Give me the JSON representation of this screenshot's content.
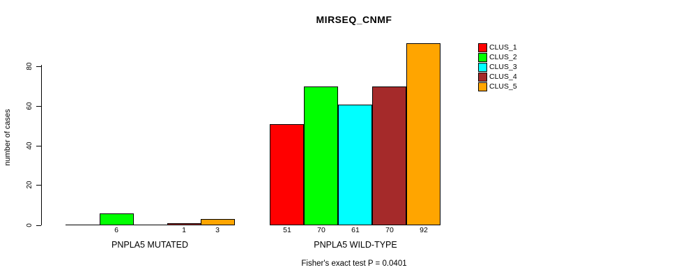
{
  "title": "MIRSEQ_CNMF",
  "caption": "Fisher's exact test P = 0.0401",
  "chart_data": {
    "type": "bar",
    "title": "MIRSEQ_CNMF",
    "xlabel": "",
    "ylabel": "number of cases",
    "ylim": [
      0,
      92
    ],
    "y_ticks": [
      0,
      20,
      40,
      60,
      80
    ],
    "grid": false,
    "legend_position": "top-right",
    "categories": [
      "PNPLA5 MUTATED",
      "PNPLA5 WILD-TYPE"
    ],
    "series": [
      {
        "name": "CLUS_1",
        "color": "#FF0000",
        "values": [
          0,
          51
        ]
      },
      {
        "name": "CLUS_2",
        "color": "#00FF00",
        "values": [
          6,
          70
        ]
      },
      {
        "name": "CLUS_3",
        "color": "#00FFFF",
        "values": [
          0,
          61
        ]
      },
      {
        "name": "CLUS_4",
        "color": "#A52A2A",
        "values": [
          1,
          70
        ]
      },
      {
        "name": "CLUS_5",
        "color": "#FFA500",
        "values": [
          3,
          92
        ]
      }
    ],
    "shown_value_labels": [
      [
        "6",
        "1",
        "3"
      ],
      [
        "51",
        "70",
        "61",
        "70",
        "92"
      ]
    ],
    "annotation": "Fisher's exact test P = 0.0401"
  }
}
